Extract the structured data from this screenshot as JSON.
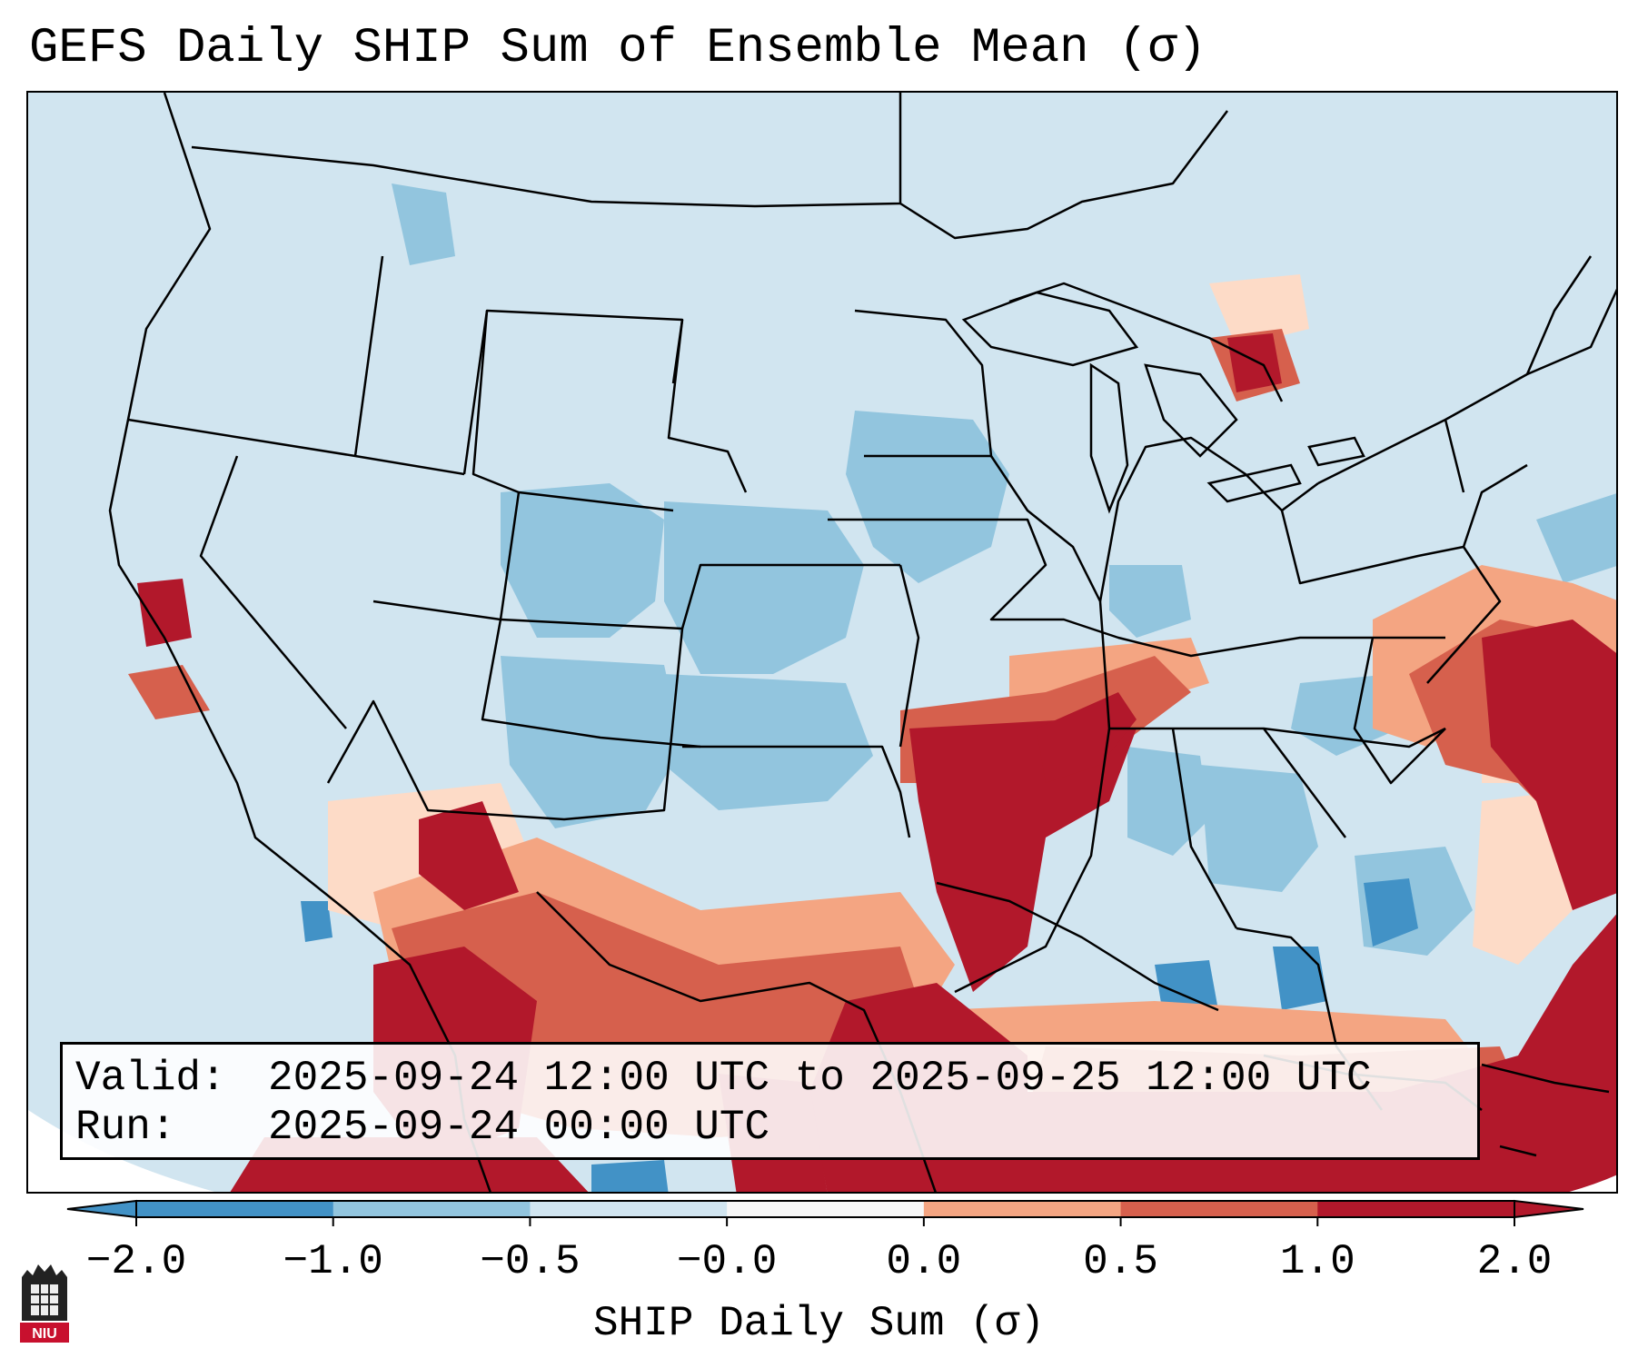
{
  "title": "GEFS Daily SHIP Sum of Ensemble Mean (σ)",
  "info": {
    "valid_key": "Valid:",
    "valid_value": "2025-09-24 12:00 UTC to 2025-09-25 12:00 UTC",
    "run_key": "Run:",
    "run_value": "2025-09-24 00:00 UTC"
  },
  "colorbar": {
    "label": "SHIP Daily Sum (σ)",
    "ticks": [
      "−2.0",
      "−1.0",
      "−0.5",
      "−0.0",
      "0.0",
      "0.5",
      "1.0",
      "2.0"
    ],
    "colors": [
      "#4292c6",
      "#92c5de",
      "#d1e5f0",
      "#f7f7f7",
      "#fddbc7",
      "#f4a582",
      "#d6604d",
      "#b2182b"
    ],
    "extend": "both"
  },
  "logo": {
    "text": "NIU"
  },
  "map": {
    "region": "Contiguous United States, northern Mexico, Gulf of Mexico and western Atlantic",
    "variable": "SHIP daily sum of GEFS ensemble mean",
    "high_anomaly_areas": [
      "Lower Mississippi Valley",
      "Gulf of Mexico",
      "Texas",
      "northern Mexico",
      "western Atlantic",
      "southeastern Ontario",
      "central California coast",
      "southern Arizona"
    ],
    "low_anomaly_areas": [
      "Great Plains",
      "Upper Midwest",
      "Southeast interior",
      "Pacific Northwest"
    ]
  }
}
